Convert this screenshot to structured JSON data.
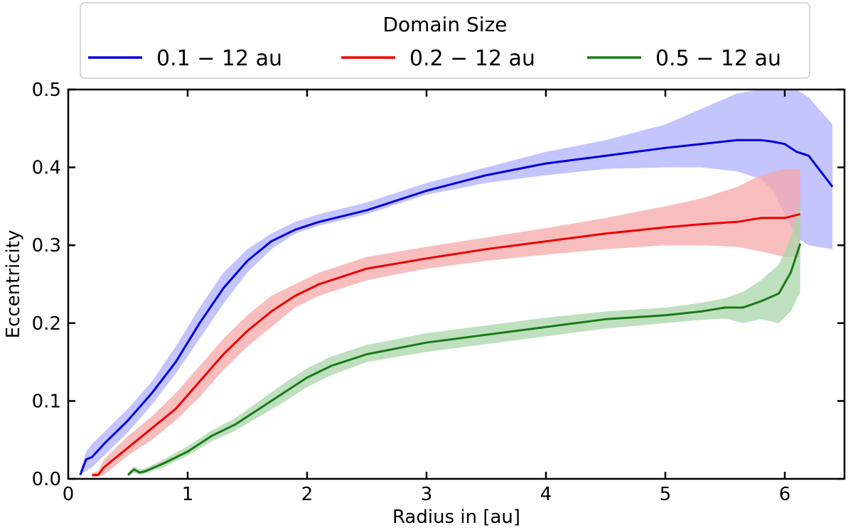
{
  "chart_data": {
    "type": "line",
    "title": "",
    "xlabel": "Radius in [au]",
    "ylabel": "Eccentricity",
    "xlim": [
      0,
      6.5
    ],
    "ylim": [
      0,
      0.5
    ],
    "xticks": [
      "0",
      "1",
      "2",
      "3",
      "4",
      "5",
      "6"
    ],
    "yticks": [
      "0.0",
      "0.1",
      "0.2",
      "0.3",
      "0.4",
      "0.5"
    ],
    "grid": false,
    "legend": {
      "title": "Domain Size",
      "placement": "top-center",
      "entries": [
        "0.1 − 12 au",
        "0.2 − 12 au",
        "0.5 − 12 au"
      ]
    },
    "series": [
      {
        "name": "0.1 − 12 au",
        "color": "#0000dd",
        "band_color": "#b0b0ff",
        "x": [
          0.1,
          0.15,
          0.2,
          0.3,
          0.5,
          0.7,
          0.9,
          1.1,
          1.3,
          1.5,
          1.7,
          1.9,
          2.1,
          2.5,
          3.0,
          3.5,
          4.0,
          4.5,
          5.0,
          5.3,
          5.6,
          5.8,
          5.9,
          6.0,
          6.1,
          6.2,
          6.4
        ],
        "y": [
          0.005,
          0.025,
          0.028,
          0.045,
          0.075,
          0.11,
          0.15,
          0.2,
          0.245,
          0.28,
          0.305,
          0.32,
          0.33,
          0.345,
          0.37,
          0.39,
          0.405,
          0.415,
          0.425,
          0.43,
          0.435,
          0.435,
          0.433,
          0.43,
          0.42,
          0.415,
          0.375
        ],
        "low": [
          0.005,
          0.01,
          0.015,
          0.03,
          0.06,
          0.095,
          0.135,
          0.18,
          0.225,
          0.265,
          0.295,
          0.315,
          0.325,
          0.34,
          0.365,
          0.38,
          0.39,
          0.398,
          0.4,
          0.4,
          0.395,
          0.385,
          0.37,
          0.34,
          0.31,
          0.3,
          0.295
        ],
        "high": [
          0.01,
          0.035,
          0.045,
          0.06,
          0.09,
          0.125,
          0.17,
          0.22,
          0.265,
          0.295,
          0.315,
          0.33,
          0.34,
          0.355,
          0.38,
          0.4,
          0.42,
          0.435,
          0.455,
          0.475,
          0.495,
          0.5,
          0.5,
          0.5,
          0.5,
          0.49,
          0.455
        ]
      },
      {
        "name": "0.2 − 12 au",
        "color": "#ee0000",
        "band_color": "#f6a8a8",
        "x": [
          0.2,
          0.25,
          0.3,
          0.5,
          0.7,
          0.9,
          1.1,
          1.3,
          1.5,
          1.7,
          1.9,
          2.1,
          2.5,
          3.0,
          3.5,
          4.0,
          4.5,
          5.0,
          5.3,
          5.6,
          5.8,
          6.0,
          6.13
        ],
        "y": [
          0.005,
          0.005,
          0.015,
          0.04,
          0.065,
          0.09,
          0.125,
          0.16,
          0.19,
          0.215,
          0.235,
          0.25,
          0.27,
          0.283,
          0.295,
          0.305,
          0.315,
          0.323,
          0.327,
          0.33,
          0.335,
          0.335,
          0.34
        ],
        "low": [
          0.002,
          0.003,
          0.005,
          0.03,
          0.05,
          0.075,
          0.105,
          0.14,
          0.17,
          0.195,
          0.22,
          0.235,
          0.255,
          0.27,
          0.28,
          0.288,
          0.295,
          0.3,
          0.3,
          0.298,
          0.292,
          0.285,
          0.285
        ],
        "high": [
          0.008,
          0.01,
          0.025,
          0.055,
          0.08,
          0.11,
          0.145,
          0.18,
          0.21,
          0.235,
          0.25,
          0.265,
          0.285,
          0.298,
          0.31,
          0.322,
          0.335,
          0.35,
          0.36,
          0.375,
          0.39,
          0.398,
          0.398
        ]
      },
      {
        "name": "0.5 − 12 au",
        "color": "#1a7a1a",
        "band_color": "#a9d6a9",
        "x": [
          0.5,
          0.55,
          0.6,
          0.65,
          0.8,
          1.0,
          1.2,
          1.4,
          1.6,
          1.8,
          2.0,
          2.2,
          2.5,
          3.0,
          3.5,
          4.0,
          4.5,
          5.0,
          5.3,
          5.5,
          5.65,
          5.8,
          5.95,
          6.05,
          6.13
        ],
        "y": [
          0.005,
          0.012,
          0.008,
          0.01,
          0.02,
          0.035,
          0.055,
          0.07,
          0.09,
          0.11,
          0.13,
          0.145,
          0.16,
          0.175,
          0.185,
          0.195,
          0.205,
          0.21,
          0.215,
          0.22,
          0.22,
          0.228,
          0.238,
          0.265,
          0.302
        ],
        "low": [
          0.003,
          0.008,
          0.005,
          0.007,
          0.015,
          0.03,
          0.048,
          0.062,
          0.08,
          0.098,
          0.118,
          0.133,
          0.15,
          0.163,
          0.173,
          0.183,
          0.193,
          0.2,
          0.204,
          0.206,
          0.2,
          0.205,
          0.2,
          0.215,
          0.24
        ],
        "high": [
          0.008,
          0.016,
          0.012,
          0.014,
          0.025,
          0.042,
          0.062,
          0.078,
          0.1,
          0.122,
          0.142,
          0.157,
          0.172,
          0.187,
          0.197,
          0.207,
          0.215,
          0.22,
          0.226,
          0.232,
          0.24,
          0.255,
          0.275,
          0.31,
          0.36
        ]
      }
    ]
  }
}
